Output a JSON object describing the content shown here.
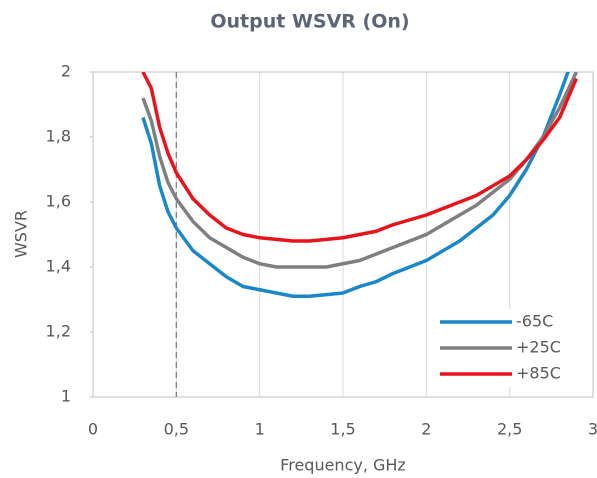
{
  "chart_data": {
    "type": "line",
    "title": "Output WSVR (On)",
    "x_label": "Frequency, GHz",
    "y_label": "WSVR",
    "x": [
      0.3,
      0.35,
      0.4,
      0.45,
      0.5,
      0.6,
      0.7,
      0.8,
      0.9,
      1.0,
      1.1,
      1.2,
      1.3,
      1.4,
      1.5,
      1.6,
      1.7,
      1.8,
      1.9,
      2.0,
      2.1,
      2.2,
      2.3,
      2.4,
      2.5,
      2.6,
      2.7,
      2.8,
      2.9
    ],
    "series": [
      {
        "name": "-65C",
        "color": "#1a87c9",
        "values": [
          1.86,
          1.78,
          1.65,
          1.57,
          1.52,
          1.45,
          1.41,
          1.37,
          1.34,
          1.33,
          1.32,
          1.31,
          1.31,
          1.315,
          1.32,
          1.34,
          1.355,
          1.38,
          1.4,
          1.42,
          1.45,
          1.48,
          1.52,
          1.56,
          1.62,
          1.7,
          1.8,
          1.93,
          2.07
        ]
      },
      {
        "name": "+25C",
        "color": "#7f7f7f",
        "values": [
          1.92,
          1.85,
          1.74,
          1.66,
          1.61,
          1.54,
          1.49,
          1.46,
          1.43,
          1.41,
          1.4,
          1.4,
          1.4,
          1.4,
          1.41,
          1.42,
          1.44,
          1.46,
          1.48,
          1.5,
          1.53,
          1.56,
          1.59,
          1.63,
          1.67,
          1.73,
          1.8,
          1.89,
          2.0
        ]
      },
      {
        "name": "+85C",
        "color": "#e8141b",
        "values": [
          2.0,
          1.95,
          1.83,
          1.75,
          1.69,
          1.61,
          1.56,
          1.52,
          1.5,
          1.49,
          1.485,
          1.48,
          1.48,
          1.485,
          1.49,
          1.5,
          1.51,
          1.53,
          1.545,
          1.56,
          1.58,
          1.6,
          1.62,
          1.65,
          1.68,
          1.73,
          1.79,
          1.86,
          1.98
        ]
      }
    ],
    "xlim": [
      0,
      3
    ],
    "xticks": [
      0,
      {
        "value": 0.5,
        "label": "0,5"
      },
      1,
      {
        "value": 1.5,
        "label": "1,5"
      },
      2,
      {
        "value": 2.5,
        "label": "2,5"
      },
      3
    ],
    "ylim": [
      1,
      2
    ],
    "yticks": [
      1,
      {
        "value": 1.2,
        "label": "1,2"
      },
      {
        "value": 1.4,
        "label": "1,4"
      },
      {
        "value": 1.6,
        "label": "1,6"
      },
      {
        "value": 1.8,
        "label": "1,8"
      },
      2
    ],
    "reference_x": 0.5,
    "grid": "x",
    "legend": "lower right"
  }
}
